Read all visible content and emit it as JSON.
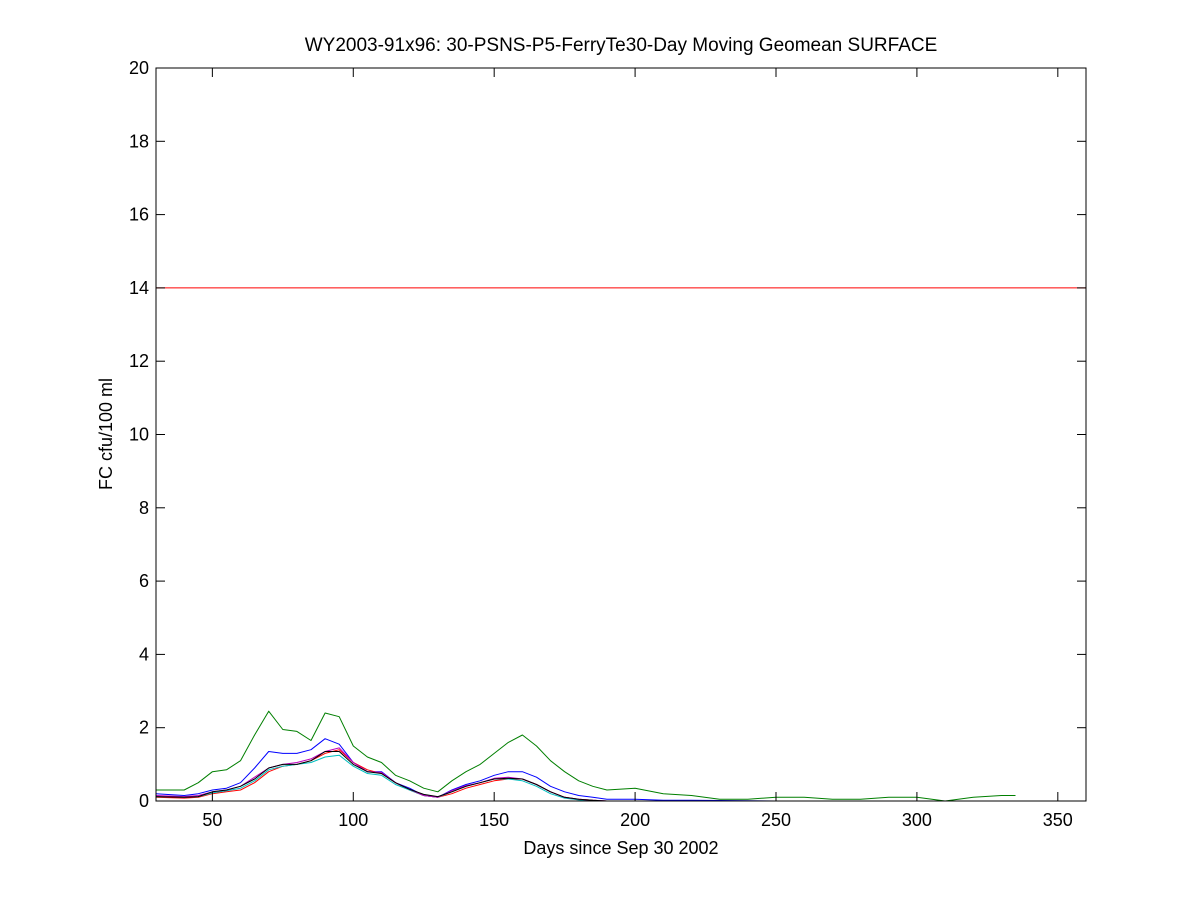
{
  "chart_data": {
    "type": "line",
    "title": "WY2003-91x96: 30-PSNS-P5-FerryTe30-Day Moving Geomean SURFACE",
    "xlabel": "Days since Sep 30 2002",
    "ylabel": "FC cfu/100 ml",
    "xlim": [
      30,
      360
    ],
    "ylim": [
      0,
      20
    ],
    "xticks": [
      50,
      100,
      150,
      200,
      250,
      300,
      350
    ],
    "yticks": [
      0,
      2,
      4,
      6,
      8,
      10,
      12,
      14,
      16,
      18,
      20
    ],
    "grid": false,
    "legend": "none",
    "reference_line": {
      "y": 14,
      "color": "#ff0000"
    },
    "series": [
      {
        "color": "#007f00",
        "x": [
          30,
          40,
          45,
          50,
          55,
          60,
          65,
          70,
          75,
          80,
          85,
          90,
          95,
          100,
          105,
          110,
          115,
          120,
          125,
          130,
          135,
          140,
          145,
          150,
          155,
          160,
          165,
          170,
          175,
          180,
          185,
          190,
          200,
          210,
          220,
          230,
          240,
          250,
          260,
          270,
          280,
          290,
          300,
          310,
          320,
          330,
          335
        ],
        "y": [
          0.3,
          0.3,
          0.5,
          0.8,
          0.85,
          1.1,
          1.8,
          2.45,
          1.95,
          1.9,
          1.65,
          2.4,
          2.3,
          1.5,
          1.2,
          1.05,
          0.7,
          0.55,
          0.35,
          0.25,
          0.55,
          0.8,
          1.0,
          1.3,
          1.6,
          1.8,
          1.5,
          1.1,
          0.8,
          0.55,
          0.4,
          0.3,
          0.35,
          0.2,
          0.15,
          0.05,
          0.05,
          0.1,
          0.1,
          0.05,
          0.05,
          0.1,
          0.1,
          0.0,
          0.1,
          0.15,
          0.15
        ]
      },
      {
        "color": "#0000ff",
        "x": [
          30,
          40,
          45,
          50,
          55,
          60,
          65,
          70,
          75,
          80,
          85,
          90,
          95,
          100,
          105,
          110,
          115,
          120,
          125,
          130,
          135,
          140,
          145,
          150,
          155,
          160,
          165,
          170,
          175,
          180,
          185,
          190,
          200,
          210,
          220,
          250,
          275,
          300,
          335
        ],
        "y": [
          0.2,
          0.15,
          0.2,
          0.3,
          0.35,
          0.5,
          0.9,
          1.35,
          1.3,
          1.3,
          1.4,
          1.7,
          1.55,
          1.05,
          0.8,
          0.8,
          0.5,
          0.35,
          0.15,
          0.1,
          0.3,
          0.45,
          0.55,
          0.7,
          0.8,
          0.8,
          0.65,
          0.4,
          0.25,
          0.15,
          0.1,
          0.05,
          0.05,
          0.02,
          0.02,
          0.0,
          0.0,
          0.0,
          0.0
        ]
      },
      {
        "color": "#ff0000",
        "x": [
          30,
          40,
          45,
          50,
          55,
          60,
          65,
          70,
          75,
          80,
          85,
          90,
          95,
          100,
          105,
          110,
          115,
          120,
          125,
          130,
          135,
          140,
          145,
          150,
          155,
          160,
          165,
          170,
          175,
          180,
          185,
          190,
          200,
          210,
          220,
          250,
          275
        ],
        "y": [
          0.1,
          0.08,
          0.1,
          0.2,
          0.25,
          0.3,
          0.5,
          0.8,
          0.95,
          1.0,
          1.1,
          1.3,
          1.4,
          1.05,
          0.85,
          0.75,
          0.5,
          0.3,
          0.15,
          0.1,
          0.2,
          0.35,
          0.45,
          0.55,
          0.6,
          0.6,
          0.45,
          0.25,
          0.1,
          0.05,
          0.02,
          0.0,
          0.0,
          0.0,
          0.0,
          0.0,
          0.0
        ]
      },
      {
        "color": "#00bfbf",
        "x": [
          30,
          40,
          45,
          50,
          55,
          60,
          65,
          70,
          75,
          80,
          85,
          90,
          95,
          100,
          105,
          110,
          115,
          120,
          125,
          130,
          135,
          140,
          145,
          150,
          155,
          160,
          165,
          170,
          175,
          180,
          185,
          190,
          200
        ],
        "y": [
          0.12,
          0.1,
          0.12,
          0.22,
          0.28,
          0.35,
          0.55,
          0.85,
          0.95,
          1.0,
          1.05,
          1.2,
          1.25,
          0.95,
          0.75,
          0.7,
          0.45,
          0.3,
          0.15,
          0.1,
          0.25,
          0.4,
          0.5,
          0.6,
          0.6,
          0.55,
          0.4,
          0.2,
          0.08,
          0.03,
          0.01,
          0.0,
          0.0
        ]
      },
      {
        "color": "#bf00bf",
        "x": [
          30,
          40,
          45,
          50,
          55,
          60,
          65,
          70,
          75,
          80,
          85,
          90,
          95,
          100,
          105,
          110,
          115,
          120,
          125,
          130,
          135,
          140,
          145,
          150,
          155,
          160,
          165,
          170,
          175,
          180,
          185,
          190,
          200,
          220
        ],
        "y": [
          0.15,
          0.12,
          0.15,
          0.25,
          0.3,
          0.4,
          0.65,
          0.9,
          1.0,
          1.05,
          1.15,
          1.35,
          1.45,
          1.05,
          0.8,
          0.78,
          0.5,
          0.32,
          0.15,
          0.1,
          0.28,
          0.42,
          0.5,
          0.62,
          0.65,
          0.6,
          0.45,
          0.25,
          0.1,
          0.05,
          0.02,
          0.0,
          0.0,
          0.0
        ]
      },
      {
        "color": "#000000",
        "x": [
          30,
          40,
          45,
          50,
          55,
          60,
          65,
          70,
          75,
          80,
          85,
          90,
          95,
          100,
          105,
          110,
          115,
          120,
          125,
          130,
          135,
          140,
          145,
          150,
          155,
          160,
          165,
          170,
          175,
          180,
          185,
          190,
          200,
          210
        ],
        "y": [
          0.12,
          0.1,
          0.12,
          0.25,
          0.3,
          0.4,
          0.6,
          0.9,
          1.0,
          1.0,
          1.1,
          1.35,
          1.35,
          1.0,
          0.8,
          0.75,
          0.5,
          0.32,
          0.18,
          0.12,
          0.25,
          0.4,
          0.5,
          0.6,
          0.62,
          0.6,
          0.45,
          0.25,
          0.1,
          0.05,
          0.02,
          0.0,
          0.0,
          0.0
        ]
      }
    ]
  }
}
